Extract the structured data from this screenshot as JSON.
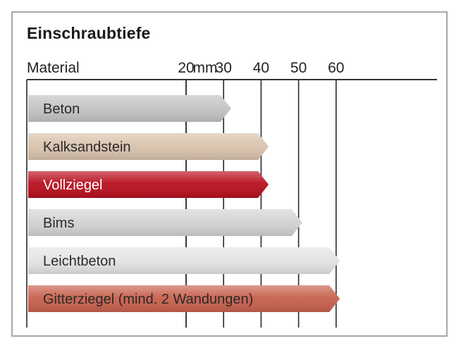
{
  "title": "Einschraubtiefe",
  "chart_data": {
    "type": "bar",
    "orientation": "horizontal",
    "title": "Einschraubtiefe",
    "category_axis_label": "Material",
    "unit_label": "mm",
    "categories": [
      "Beton",
      "Kalksandstein",
      "Vollziegel",
      "Bims",
      "Leichtbeton",
      "Gitterziegel (mind. 2 Wandungen)"
    ],
    "values": [
      32,
      42,
      42,
      51,
      61,
      61
    ],
    "x_ticks": [
      20,
      30,
      40,
      50,
      60
    ],
    "xlim": [
      0,
      60
    ],
    "grid": "vertical lines",
    "colors": [
      "#c3c3c5",
      "#d9c3ad",
      "#b8101f",
      "#d3d3d5",
      "#e4e4e6",
      "#c8614d"
    ],
    "label_colors": [
      "#2a2a2a",
      "#2a2a2a",
      "#ffffff",
      "#2a2a2a",
      "#2a2a2a",
      "#2a2a2a"
    ]
  }
}
